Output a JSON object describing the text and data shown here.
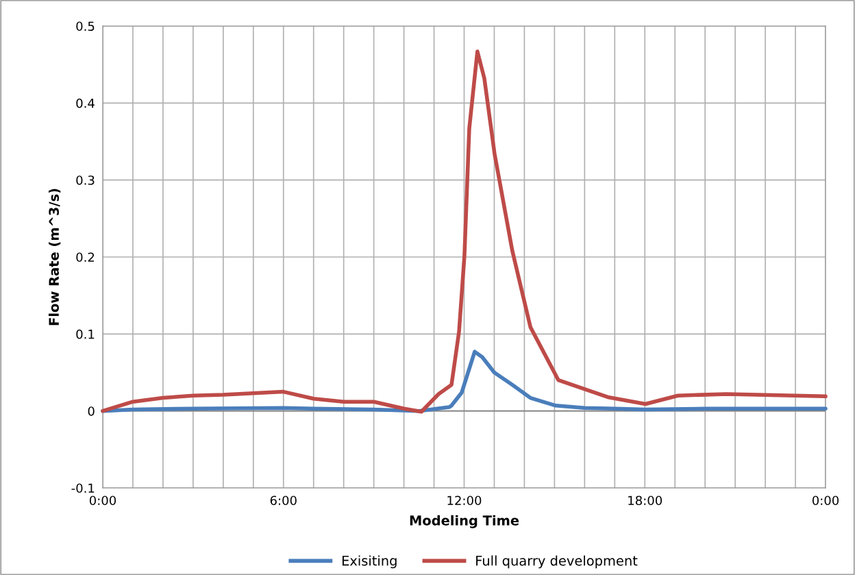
{
  "chart_data": {
    "type": "line",
    "xlabel": "Modeling Time",
    "ylabel": "Flow Rate (m^3/s)",
    "xlim": [
      0,
      24
    ],
    "xticks": [
      {
        "value": 0,
        "label": "0:00"
      },
      {
        "value": 1,
        "label": null
      },
      {
        "value": 2,
        "label": null
      },
      {
        "value": 3,
        "label": null
      },
      {
        "value": 4,
        "label": null
      },
      {
        "value": 5,
        "label": null
      },
      {
        "value": 6,
        "label": "6:00"
      },
      {
        "value": 7,
        "label": null
      },
      {
        "value": 8,
        "label": null
      },
      {
        "value": 9,
        "label": null
      },
      {
        "value": 10,
        "label": null
      },
      {
        "value": 11,
        "label": null
      },
      {
        "value": 12,
        "label": "12:00"
      },
      {
        "value": 13,
        "label": null
      },
      {
        "value": 14,
        "label": null
      },
      {
        "value": 15,
        "label": null
      },
      {
        "value": 16,
        "label": null
      },
      {
        "value": 17,
        "label": null
      },
      {
        "value": 18,
        "label": "18:00"
      },
      {
        "value": 19,
        "label": null
      },
      {
        "value": 20,
        "label": null
      },
      {
        "value": 21,
        "label": null
      },
      {
        "value": 22,
        "label": null
      },
      {
        "value": 23,
        "label": null
      },
      {
        "value": 24,
        "label": "0:00"
      }
    ],
    "ylim": [
      -0.1,
      0.5
    ],
    "yticks": [
      {
        "value": -0.1,
        "label": "-0.1"
      },
      0,
      0.1,
      0.2,
      0.3,
      0.4,
      0.5
    ],
    "grid": true,
    "legend": "bottom",
    "marker": "none",
    "line_style": "solid",
    "series": [
      {
        "name": "Exisiting",
        "color": "#4a7ebb",
        "x": [
          0,
          1,
          3,
          6,
          7,
          9,
          10.5,
          11.5,
          11.58,
          11.92,
          12.35,
          12.6,
          13.0,
          13.6,
          14.2,
          15.04,
          16,
          17,
          18.0,
          20,
          22,
          24
        ],
        "values": [
          0,
          0.002,
          0.003,
          0.004,
          0.003,
          0.002,
          0,
          0.005,
          0.007,
          0.024,
          0.077,
          0.07,
          0.05,
          0.034,
          0.017,
          0.007,
          0.004,
          0.003,
          0.002,
          0.003,
          0.003,
          0.003
        ]
      },
      {
        "name": "Full quarry development",
        "color": "#be4b48",
        "x": [
          0,
          1,
          2,
          3,
          4,
          5,
          6,
          7,
          8,
          9,
          10,
          10.58,
          11.15,
          11.58,
          11.83,
          12.01,
          12.17,
          12.44,
          12.67,
          13.01,
          13.6,
          14.2,
          15.13,
          16.77,
          18.02,
          19.1,
          20.7,
          24
        ],
        "values": [
          0,
          0.012,
          0.017,
          0.02,
          0.021,
          0.023,
          0.025,
          0.016,
          0.012,
          0.012,
          0.003,
          -0.001,
          0.022,
          0.034,
          0.103,
          0.202,
          0.367,
          0.467,
          0.432,
          0.334,
          0.208,
          0.109,
          0.04,
          0.018,
          0.009,
          0.02,
          0.022,
          0.019
        ]
      }
    ]
  }
}
